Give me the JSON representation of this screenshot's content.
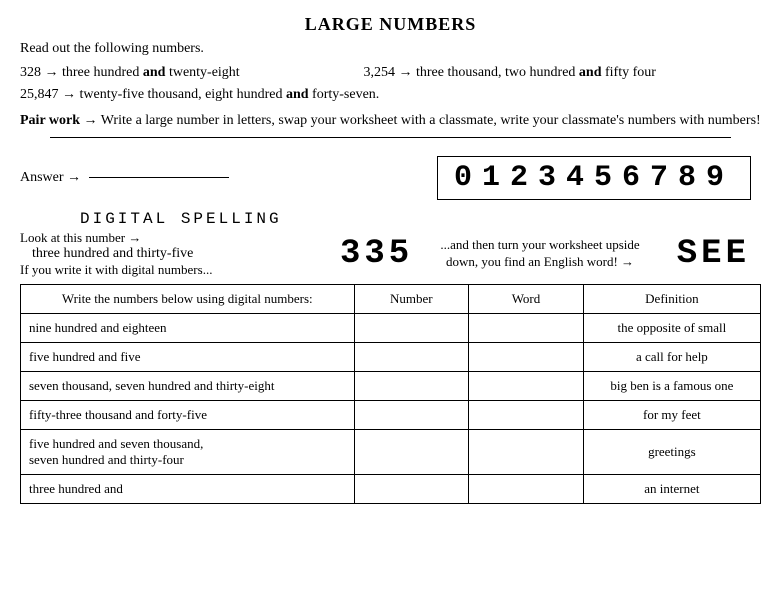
{
  "title": "LARGE NUMBERS",
  "intro": "Read out the following numbers.",
  "arrow": "→",
  "ex1_num": "328",
  "ex1_txt_a": "three hundred ",
  "ex1_and": "and",
  "ex1_txt_b": " twenty-eight",
  "ex2_num": "3,254",
  "ex2_txt_a": "three thousand, two hundred ",
  "ex2_and": "and",
  "ex2_txt_b": " fifty four",
  "ex3_num": "25,847",
  "ex3_txt_a": "twenty-five thousand, eight hundred ",
  "ex3_and": "and",
  "ex3_txt_b": " forty-seven.",
  "pairwork_label": "Pair work",
  "pairwork_text": "Write a large number in letters, swap your worksheet with a classmate, write your classmate's numbers with numbers!",
  "answer_label": "Answer",
  "digital_digits": "0123456789",
  "digital_heading": "DIGITAL SPELLING",
  "lookat": "Look at this number →",
  "three_hundred_thirty_five": "three hundred and thirty-five",
  "ifyou": "If you write it with digital numbers...",
  "num335": "335",
  "midtext": "...and then turn your worksheet upside down, you find an English word! →",
  "see_word": "SEE",
  "table": {
    "header_prompt": "Write the numbers below using digital numbers:",
    "header_number": "Number",
    "header_word": "Word",
    "header_def": "Definition",
    "rows": [
      {
        "prompt": "nine hundred and eighteen",
        "def": "the opposite of small"
      },
      {
        "prompt": "five hundred and five",
        "def": "a call for help"
      },
      {
        "prompt": "seven thousand, seven hundred and thirty-eight",
        "def": "big ben is a famous one"
      },
      {
        "prompt": "fifty-three thousand and forty-five",
        "def": "for my feet"
      },
      {
        "prompt": "five hundred and seven thousand,\nseven hundred and thirty-four",
        "def": "greetings"
      },
      {
        "prompt": "three hundred and",
        "def": "an internet"
      }
    ]
  }
}
